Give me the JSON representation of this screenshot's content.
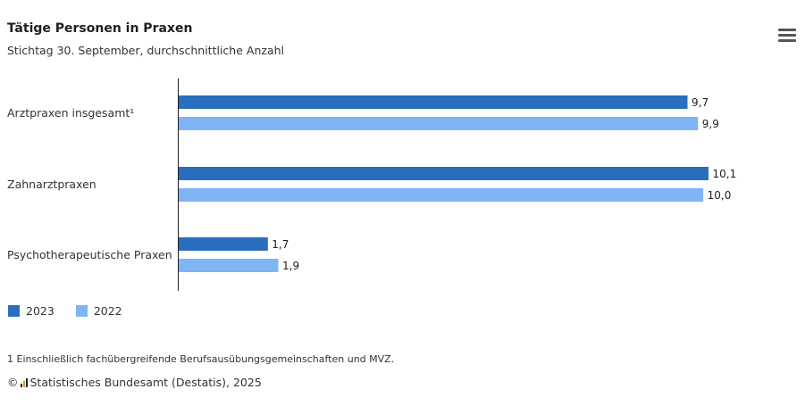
{
  "header": {
    "title": "Tätige Personen in Praxen",
    "subtitle": "Stichtag 30. September, durchschnittliche Anzahl",
    "menu_icon": "hamburger-menu-icon"
  },
  "chart_data": {
    "type": "bar",
    "orientation": "horizontal",
    "categories": [
      "Arztpraxen insgesamt¹",
      "Zahnarztpraxen",
      "Psychotherapeutische Praxen"
    ],
    "series": [
      {
        "name": "2023",
        "color": "#2a6ebf",
        "values": [
          9.7,
          10.1,
          1.7
        ],
        "labels": [
          "9,7",
          "10,1",
          "1,7"
        ]
      },
      {
        "name": "2022",
        "color": "#7fb4f5",
        "values": [
          9.9,
          10.0,
          1.9
        ],
        "labels": [
          "9,9",
          "10,0",
          "1,9"
        ]
      }
    ],
    "xlim": [
      0,
      10.1
    ],
    "grid": false,
    "legend_position": "bottom-left"
  },
  "footer": {
    "footnote": "1 Einschließlich fachübergreifende Berufsausübungsgemeinschaften und MVZ.",
    "copyright_symbol": "©",
    "source_logo_icon": "destatis-logo-icon",
    "source": "Statistisches Bundesamt (Destatis), 2025"
  }
}
